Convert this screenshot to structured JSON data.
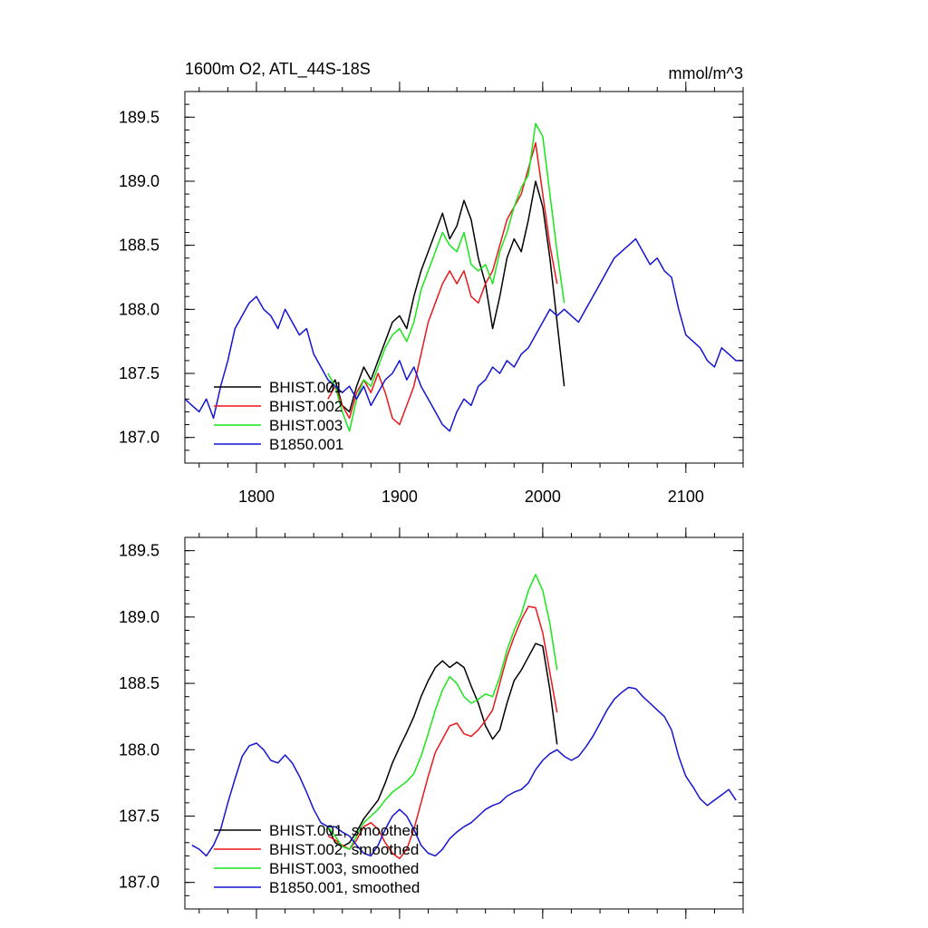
{
  "colors": {
    "BHIST.001": "#000000",
    "BHIST.002": "#e8171a",
    "BHIST.003": "#19e619",
    "B1850.001": "#1414d4"
  },
  "chart_data": [
    {
      "type": "line",
      "title": "1600m O2, ATL_44S-18S",
      "units": "mmol/m^3",
      "xlim": [
        1750,
        2140
      ],
      "ylim": [
        186.8,
        189.7
      ],
      "x_ticks": [
        1800,
        1900,
        2000,
        2100
      ],
      "x_tick_labels": [
        "1800",
        "1900",
        "2000",
        "2100"
      ],
      "y_ticks": [
        187.0,
        187.5,
        188.0,
        188.5,
        189.0,
        189.5
      ],
      "y_tick_labels": [
        "187.0",
        "187.5",
        "188.0",
        "188.5",
        "189.0",
        "189.5"
      ],
      "legend_position": "bottom-left",
      "series": [
        {
          "name": "BHIST.001",
          "x": [
            1850,
            1855,
            1860,
            1865,
            1870,
            1875,
            1880,
            1885,
            1890,
            1895,
            1900,
            1905,
            1910,
            1915,
            1920,
            1925,
            1930,
            1935,
            1940,
            1945,
            1950,
            1955,
            1960,
            1965,
            1970,
            1975,
            1980,
            1985,
            1990,
            1995,
            2000,
            2005,
            2010,
            2015
          ],
          "y": [
            187.35,
            187.45,
            187.25,
            187.2,
            187.4,
            187.55,
            187.45,
            187.6,
            187.75,
            187.9,
            187.95,
            187.85,
            188.1,
            188.3,
            188.45,
            188.6,
            188.75,
            188.55,
            188.65,
            188.85,
            188.7,
            188.4,
            188.2,
            187.85,
            188.1,
            188.4,
            188.55,
            188.45,
            188.7,
            189.0,
            188.8,
            188.4,
            187.9,
            187.4
          ]
        },
        {
          "name": "BHIST.002",
          "x": [
            1850,
            1855,
            1860,
            1865,
            1870,
            1875,
            1880,
            1885,
            1890,
            1895,
            1900,
            1905,
            1910,
            1915,
            1920,
            1925,
            1930,
            1935,
            1940,
            1945,
            1950,
            1955,
            1960,
            1965,
            1970,
            1975,
            1980,
            1985,
            1990,
            1995,
            2000,
            2005,
            2010
          ],
          "y": [
            187.3,
            187.4,
            187.25,
            187.15,
            187.35,
            187.45,
            187.35,
            187.5,
            187.35,
            187.15,
            187.1,
            187.25,
            187.4,
            187.65,
            187.9,
            188.05,
            188.2,
            188.3,
            188.2,
            188.3,
            188.1,
            188.05,
            188.2,
            188.3,
            188.5,
            188.7,
            188.8,
            188.9,
            189.1,
            189.3,
            188.9,
            188.5,
            188.2
          ]
        },
        {
          "name": "BHIST.003",
          "x": [
            1850,
            1855,
            1860,
            1865,
            1870,
            1875,
            1880,
            1885,
            1890,
            1895,
            1900,
            1905,
            1910,
            1915,
            1920,
            1925,
            1930,
            1935,
            1940,
            1945,
            1950,
            1955,
            1960,
            1965,
            1970,
            1975,
            1980,
            1985,
            1990,
            1995,
            2000,
            2005,
            2010,
            2015
          ],
          "y": [
            187.5,
            187.4,
            187.2,
            187.05,
            187.3,
            187.45,
            187.4,
            187.55,
            187.7,
            187.8,
            187.85,
            187.75,
            187.9,
            188.15,
            188.3,
            188.45,
            188.6,
            188.5,
            188.45,
            188.6,
            188.35,
            188.3,
            188.35,
            188.2,
            188.45,
            188.6,
            188.8,
            188.95,
            189.05,
            189.45,
            189.35,
            188.9,
            188.45,
            188.05
          ]
        },
        {
          "name": "B1850.001",
          "x": [
            1750,
            1755,
            1760,
            1765,
            1770,
            1775,
            1780,
            1785,
            1790,
            1795,
            1800,
            1805,
            1810,
            1815,
            1820,
            1825,
            1830,
            1835,
            1840,
            1845,
            1850,
            1855,
            1860,
            1865,
            1870,
            1875,
            1880,
            1885,
            1890,
            1895,
            1900,
            1905,
            1910,
            1915,
            1920,
            1925,
            1930,
            1935,
            1940,
            1945,
            1950,
            1955,
            1960,
            1965,
            1970,
            1975,
            1980,
            1985,
            1990,
            1995,
            2000,
            2005,
            2010,
            2015,
            2020,
            2025,
            2030,
            2035,
            2040,
            2045,
            2050,
            2055,
            2060,
            2065,
            2070,
            2075,
            2080,
            2085,
            2090,
            2095,
            2100,
            2105,
            2110,
            2115,
            2120,
            2125,
            2130,
            2135,
            2140
          ],
          "y": [
            187.3,
            187.25,
            187.2,
            187.3,
            187.15,
            187.4,
            187.6,
            187.85,
            187.95,
            188.05,
            188.1,
            188.0,
            187.95,
            187.85,
            188.0,
            187.9,
            187.8,
            187.85,
            187.65,
            187.55,
            187.45,
            187.4,
            187.35,
            187.4,
            187.3,
            187.4,
            187.25,
            187.35,
            187.45,
            187.5,
            187.6,
            187.45,
            187.55,
            187.4,
            187.3,
            187.2,
            187.1,
            187.05,
            187.2,
            187.3,
            187.25,
            187.4,
            187.45,
            187.55,
            187.5,
            187.6,
            187.55,
            187.65,
            187.7,
            187.8,
            187.9,
            188.0,
            187.95,
            188.0,
            187.95,
            187.9,
            188.0,
            188.1,
            188.2,
            188.3,
            188.4,
            188.45,
            188.5,
            188.55,
            188.45,
            188.35,
            188.4,
            188.3,
            188.25,
            188.0,
            187.8,
            187.75,
            187.7,
            187.6,
            187.55,
            187.7,
            187.65,
            187.6,
            187.6
          ]
        }
      ]
    },
    {
      "type": "line",
      "xlim": [
        1750,
        2140
      ],
      "ylim": [
        186.8,
        189.6
      ],
      "x_ticks": [
        1800,
        1900,
        2000,
        2100
      ],
      "x_tick_labels": [],
      "y_ticks": [
        187.0,
        187.5,
        188.0,
        188.5,
        189.0,
        189.5
      ],
      "y_tick_labels": [
        "187.0",
        "187.5",
        "188.0",
        "188.5",
        "189.0",
        "189.5"
      ],
      "legend_position": "bottom-left",
      "series": [
        {
          "name": "BHIST.001, smoothed",
          "x": [
            1850,
            1855,
            1860,
            1865,
            1870,
            1875,
            1880,
            1885,
            1890,
            1895,
            1900,
            1905,
            1910,
            1915,
            1920,
            1925,
            1930,
            1935,
            1940,
            1945,
            1950,
            1955,
            1960,
            1965,
            1970,
            1975,
            1980,
            1985,
            1990,
            1995,
            2000,
            2005,
            2010
          ],
          "y": [
            187.42,
            187.3,
            187.27,
            187.3,
            187.38,
            187.48,
            187.55,
            187.62,
            187.75,
            187.9,
            188.02,
            188.13,
            188.25,
            188.4,
            188.52,
            188.62,
            188.67,
            188.62,
            188.66,
            188.62,
            188.48,
            188.35,
            188.18,
            188.08,
            188.15,
            188.35,
            188.52,
            188.6,
            188.7,
            188.8,
            188.78,
            188.45,
            188.04
          ]
        },
        {
          "name": "BHIST.002, smoothed",
          "x": [
            1850,
            1855,
            1860,
            1865,
            1870,
            1875,
            1880,
            1885,
            1890,
            1895,
            1900,
            1905,
            1910,
            1915,
            1920,
            1925,
            1930,
            1935,
            1940,
            1945,
            1950,
            1955,
            1960,
            1965,
            1970,
            1975,
            1980,
            1985,
            1990,
            1995,
            2000,
            2005,
            2010
          ],
          "y": [
            187.35,
            187.32,
            187.28,
            187.25,
            187.32,
            187.42,
            187.45,
            187.4,
            187.3,
            187.22,
            187.18,
            187.25,
            187.4,
            187.6,
            187.8,
            187.98,
            188.08,
            188.18,
            188.2,
            188.12,
            188.1,
            188.15,
            188.22,
            188.3,
            188.5,
            188.7,
            188.85,
            188.98,
            189.08,
            189.07,
            188.88,
            188.58,
            188.28
          ]
        },
        {
          "name": "BHIST.003, smoothed",
          "x": [
            1850,
            1855,
            1860,
            1865,
            1870,
            1875,
            1880,
            1885,
            1890,
            1895,
            1900,
            1905,
            1910,
            1915,
            1920,
            1925,
            1930,
            1935,
            1940,
            1945,
            1950,
            1955,
            1960,
            1965,
            1970,
            1975,
            1980,
            1985,
            1990,
            1995,
            2000,
            2005,
            2010
          ],
          "y": [
            187.42,
            187.35,
            187.27,
            187.25,
            187.35,
            187.45,
            187.5,
            187.55,
            187.62,
            187.68,
            187.72,
            187.76,
            187.82,
            187.95,
            188.12,
            188.3,
            188.45,
            188.55,
            188.5,
            188.4,
            188.35,
            188.38,
            188.42,
            188.4,
            188.55,
            188.75,
            188.9,
            189.02,
            189.2,
            189.32,
            189.2,
            188.95,
            188.6
          ]
        },
        {
          "name": "B1850.001, smoothed",
          "x": [
            1755,
            1760,
            1765,
            1770,
            1775,
            1780,
            1785,
            1790,
            1795,
            1800,
            1805,
            1810,
            1815,
            1820,
            1825,
            1830,
            1835,
            1840,
            1845,
            1850,
            1855,
            1860,
            1865,
            1870,
            1875,
            1880,
            1885,
            1890,
            1895,
            1900,
            1905,
            1910,
            1915,
            1920,
            1925,
            1930,
            1935,
            1940,
            1945,
            1950,
            1955,
            1960,
            1965,
            1970,
            1975,
            1980,
            1985,
            1990,
            1995,
            2000,
            2005,
            2010,
            2015,
            2020,
            2025,
            2030,
            2035,
            2040,
            2045,
            2050,
            2055,
            2060,
            2065,
            2070,
            2075,
            2080,
            2085,
            2090,
            2095,
            2100,
            2105,
            2110,
            2115,
            2120,
            2125,
            2130,
            2135
          ],
          "y": [
            187.28,
            187.25,
            187.2,
            187.28,
            187.4,
            187.6,
            187.78,
            187.95,
            188.03,
            188.05,
            188.0,
            187.92,
            187.9,
            187.96,
            187.9,
            187.8,
            187.68,
            187.55,
            187.45,
            187.42,
            187.42,
            187.38,
            187.35,
            187.28,
            187.22,
            187.2,
            187.28,
            187.4,
            187.5,
            187.55,
            187.5,
            187.4,
            187.28,
            187.22,
            187.2,
            187.25,
            187.33,
            187.38,
            187.42,
            187.45,
            187.5,
            187.55,
            187.58,
            187.6,
            187.65,
            187.68,
            187.7,
            187.75,
            187.85,
            187.92,
            187.97,
            188.0,
            187.95,
            187.92,
            187.95,
            188.02,
            188.1,
            188.2,
            188.3,
            188.38,
            188.43,
            188.47,
            188.46,
            188.4,
            188.35,
            188.3,
            188.25,
            188.15,
            187.95,
            187.8,
            187.72,
            187.63,
            187.58,
            187.62,
            187.66,
            187.7,
            187.62
          ]
        }
      ]
    }
  ]
}
